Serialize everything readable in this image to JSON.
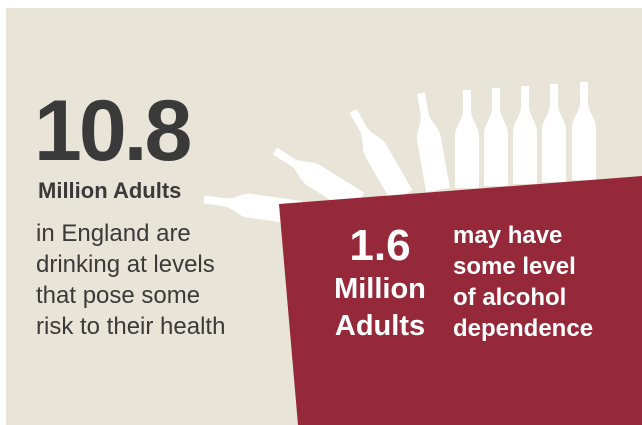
{
  "stat_primary": {
    "value": "10.8",
    "label": "Million Adults",
    "description_lines": [
      "in England are",
      "drinking at levels",
      "that pose some",
      "risk to their health"
    ]
  },
  "stat_secondary": {
    "value": "1.6",
    "label_lines": [
      "Million",
      "Adults"
    ],
    "description_lines": [
      "may have",
      "some level",
      "of alcohol",
      "dependence"
    ]
  },
  "colors": {
    "background": "#e8e4d8",
    "accent_red": "#95293a",
    "text_dark": "#3a3a3a",
    "bottle": "#ffffff"
  },
  "icons": [
    "bottle-icon"
  ]
}
